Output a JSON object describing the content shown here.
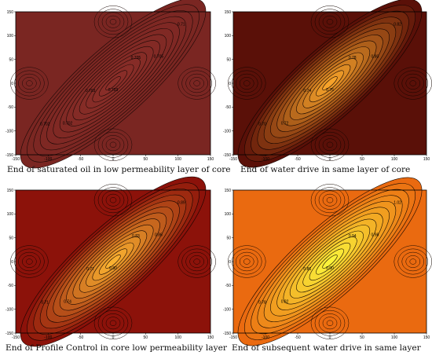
{
  "axis_ticks": {
    "x": [
      "-150",
      "-100",
      "-50",
      "0",
      "50",
      "100",
      "150"
    ],
    "y": [
      "150",
      "100",
      "50",
      "0",
      "-50",
      "-100",
      "-150"
    ]
  },
  "panels": [
    {
      "caption": "End of saturated oil in low permeability layer of core",
      "colors": {
        "outer": "#7a2622",
        "inner": "#8a2e28",
        "line": "#1a0806"
      },
      "contour_labels": [
        "0.702",
        "0.702",
        "0.703",
        "0.703",
        "0.705",
        "0.705",
        "0.71"
      ]
    },
    {
      "caption": "End of water drive in same layer of core",
      "colors": {
        "outer": "#5a1008",
        "inner": "#f5a22a",
        "line": "#120400"
      },
      "contour_labels": [
        "0.70",
        "0.72",
        "0.74",
        "0.76",
        "0.78",
        "0.80",
        "0.82"
      ]
    },
    {
      "caption": "End of Profile Control in core low permeability layer",
      "colors": {
        "outer": "#8c120a",
        "inner": "#f9b030",
        "line": "#120400"
      },
      "contour_labels": [
        "0.71",
        "0.74",
        "0.77",
        "0.80",
        "0.83",
        "0.86",
        "0.89"
      ]
    },
    {
      "caption": "End of subsequent water drive in same layer",
      "colors": {
        "outer": "#ea6a10",
        "inner": "#fbf23a",
        "line": "#140800"
      },
      "contour_labels": [
        "0.78",
        "0.82",
        "0.86",
        "0.90",
        "0.94",
        "0.98",
        "1.02"
      ]
    }
  ]
}
